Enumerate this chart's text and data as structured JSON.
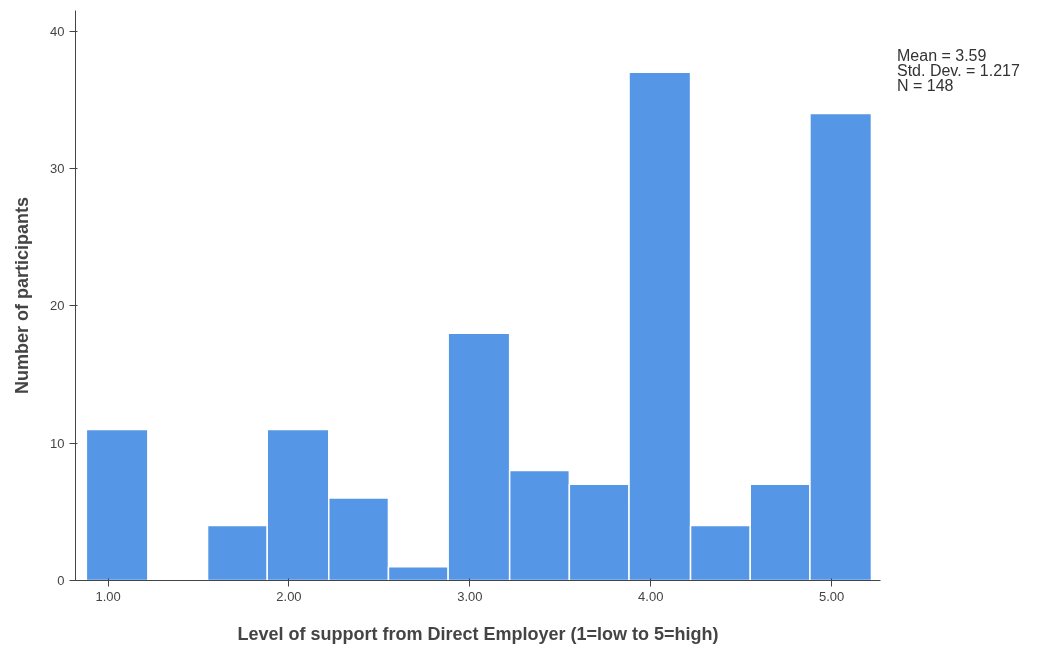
{
  "chart_data": {
    "type": "histogram",
    "xlabel": "Level of support from Direct Employer (1=low to 5=high)",
    "ylabel": "Number of participants",
    "bins": [
      0.88,
      1.22,
      1.55,
      1.88,
      2.22,
      2.55,
      2.88,
      3.22,
      3.55,
      3.88,
      4.22,
      4.55,
      4.88,
      5.22
    ],
    "values": [
      11,
      0,
      4,
      11,
      6,
      1,
      18,
      8,
      7,
      37,
      4,
      7,
      34
    ],
    "color": "#5596e6",
    "xlim": [
      0.82,
      5.27
    ],
    "ylim": [
      0,
      41.5
    ],
    "xticks": [
      {
        "value": 1,
        "label": "1.00"
      },
      {
        "value": 2,
        "label": "2.00"
      },
      {
        "value": 3,
        "label": "3.00"
      },
      {
        "value": 4,
        "label": "4.00"
      },
      {
        "value": 5,
        "label": "5.00"
      }
    ],
    "yticks": [
      0,
      10,
      20,
      30,
      40
    ],
    "grid": false,
    "annotations": [
      "Mean = 3.59",
      "Std. Dev. = 1.217",
      "N = 148"
    ]
  }
}
